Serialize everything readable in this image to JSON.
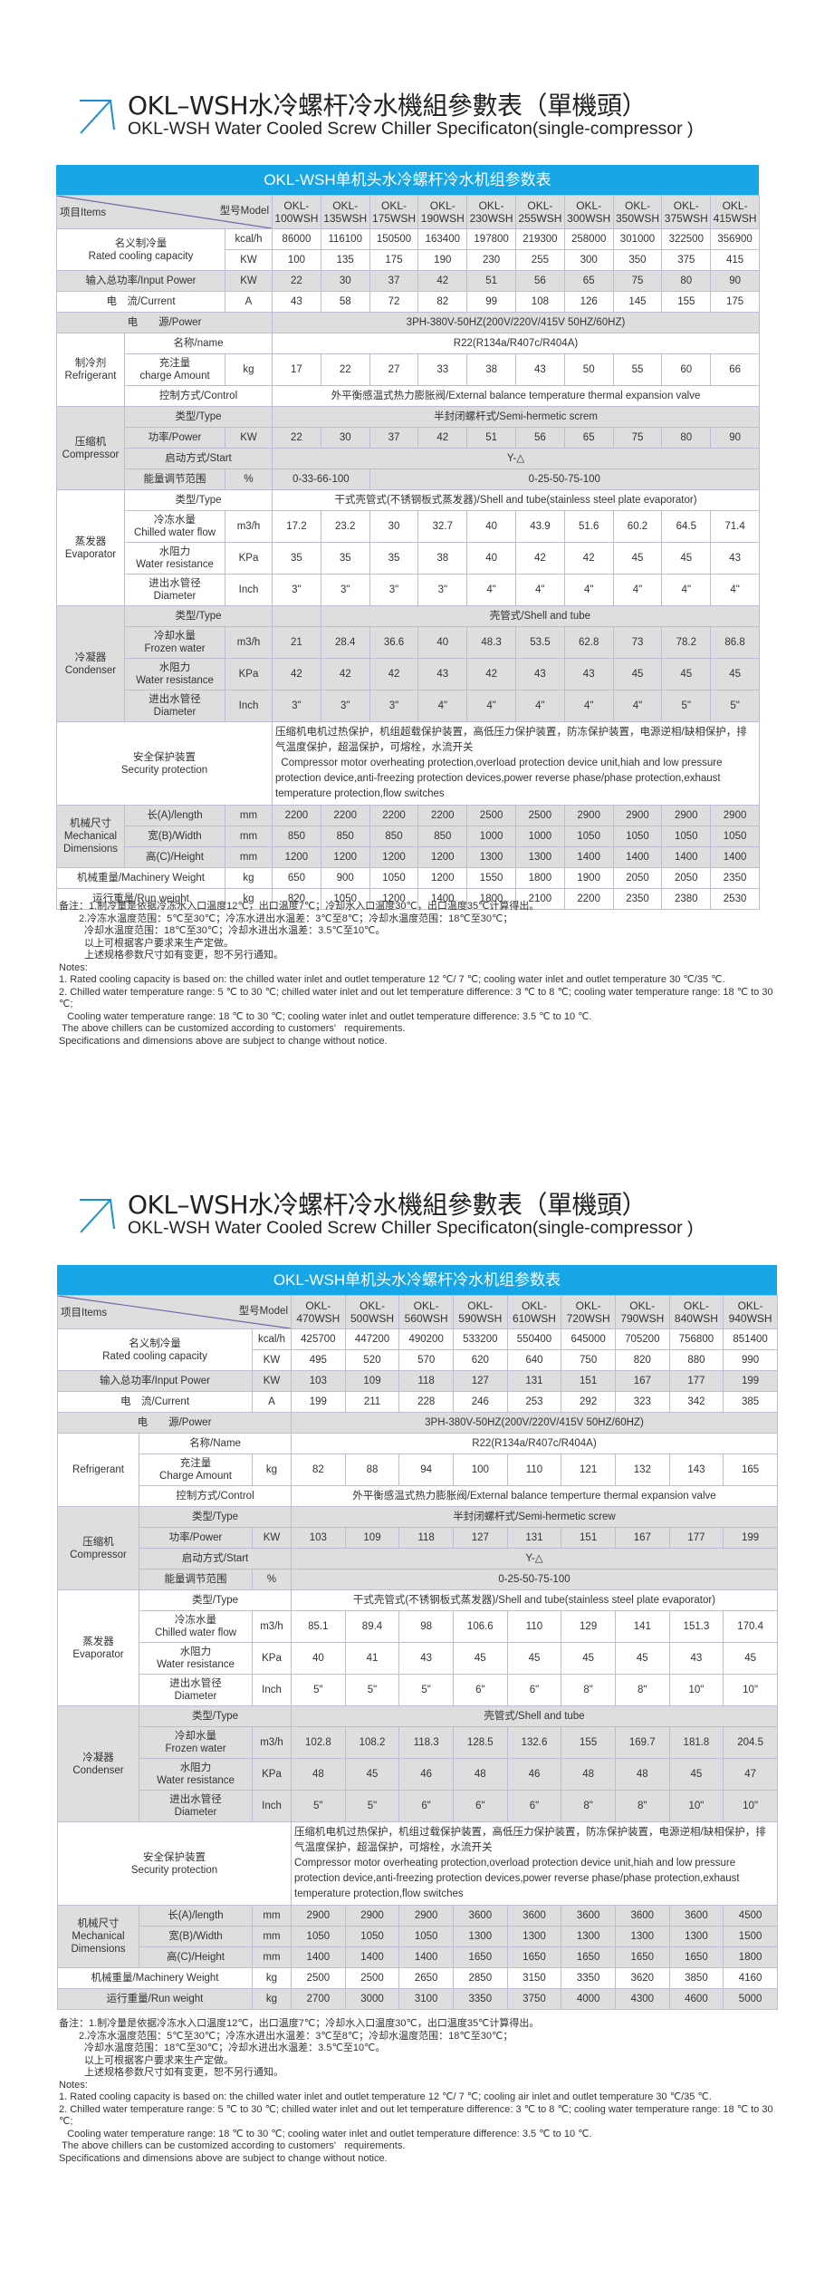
{
  "colors": {
    "banner": "#17a6e6",
    "arrow": "#1a8fd8",
    "shade": "#dedede"
  },
  "tables": [
    {
      "title_zh": "OKL–WSH水冷螺杆冷水機組參數表（單機頭）",
      "title_en": "OKL-WSH Water Cooled Screw Chiller Specificaton(single-compressor )",
      "banner": "OKL-WSH单机头水冷螺杆冷水机组参数表",
      "header": {
        "items": "项目Items",
        "model": "型号Model"
      },
      "models": [
        "OKL-100WSH",
        "OKL-135WSH",
        "OKL-175WSH",
        "OKL-190WSH",
        "OKL-230WSH",
        "OKL-255WSH",
        "OKL-300WSH",
        "OKL-350WSH",
        "OKL-375WSH",
        "OKL-415WSH"
      ],
      "sections": [
        {
          "type": "merged",
          "label": "名义制冷量\nRated cooling capacity",
          "rows": [
            {
              "unit": "kcal/h",
              "values": [
                "86000",
                "116100",
                "150500",
                "163400",
                "197800",
                "219300",
                "258000",
                "301000",
                "322500",
                "356900"
              ]
            },
            {
              "unit": "KW",
              "values": [
                "100",
                "135",
                "175",
                "190",
                "230",
                "255",
                "300",
                "350",
                "375",
                "415"
              ]
            }
          ]
        },
        {
          "type": "single",
          "label": "输入总功率/Input Power",
          "unit": "KW",
          "values": [
            "22",
            "30",
            "37",
            "42",
            "51",
            "56",
            "65",
            "75",
            "80",
            "90"
          ]
        },
        {
          "type": "single",
          "label": "电　流/Current",
          "unit": "A",
          "values": [
            "43",
            "58",
            "72",
            "82",
            "99",
            "108",
            "126",
            "145",
            "155",
            "175"
          ]
        },
        {
          "type": "span",
          "label": "电　　源/Power",
          "value": "3PH-380V-50HZ(200V/220V/415V   50HZ/60HZ)"
        },
        {
          "type": "group",
          "label": "制冷剂\nRefrigerant",
          "rows": [
            {
              "label": "名称/name",
              "value": "R22(R134a/R407c/R404A)"
            },
            {
              "label": "充注量\ncharge Amount",
              "unit": "kg",
              "values": [
                "17",
                "22",
                "27",
                "33",
                "38",
                "43",
                "50",
                "55",
                "60",
                "66"
              ]
            },
            {
              "label": "控制方式/Control",
              "value": "外平衡感温式热力膨胀阀/External balance temperature thermal expansion valve"
            }
          ]
        },
        {
          "type": "group",
          "label": "压缩机\nCompressor",
          "rows": [
            {
              "label": "类型/Type",
              "value": "半封闭螺杆式/Semi-hermetic screm"
            },
            {
              "label": "功率/Power",
              "unit": "KW",
              "values": [
                "22",
                "30",
                "37",
                "42",
                "51",
                "56",
                "65",
                "75",
                "80",
                "90"
              ]
            },
            {
              "label": "启动方式/Start",
              "value": "Y-△"
            },
            {
              "label": "能量调节范围",
              "unit": "%",
              "split": [
                "0-33-66-100",
                "0-25-50-75-100"
              ]
            }
          ]
        },
        {
          "type": "group",
          "label": "蒸发器\nEvaporator",
          "rows": [
            {
              "label": "类型/Type",
              "value": "干式壳管式(不锈钢板式蒸发器)/Shell and tube(stainless steel plate evaporator)"
            },
            {
              "label": "冷冻水量\nChilled water flow",
              "unit": "m3/h",
              "values": [
                "17.2",
                "23.2",
                "30",
                "32.7",
                "40",
                "43.9",
                "51.6",
                "60.2",
                "64.5",
                "71.4"
              ]
            },
            {
              "label": "水阻力\nWater resistance",
              "unit": "KPa",
              "values": [
                "35",
                "35",
                "35",
                "38",
                "40",
                "42",
                "42",
                "45",
                "45",
                "43"
              ]
            },
            {
              "label": "进出水管径\nDiameter",
              "unit": "Inch",
              "values": [
                "3\"",
                "3\"",
                "3\"",
                "3\"",
                "4\"",
                "4\"",
                "4\"",
                "4\"",
                "4\"",
                "4\""
              ]
            }
          ]
        },
        {
          "type": "group",
          "label": "冷凝器\nCondenser",
          "rows": [
            {
              "label": "类型/Type",
              "split": [
                "",
                "壳管式/Shell and tube"
              ]
            },
            {
              "label": "冷却水量\nFrozen water",
              "unit": "m3/h",
              "values": [
                "21",
                "28.4",
                "36.6",
                "40",
                "48.3",
                "53.5",
                "62.8",
                "73",
                "78.2",
                "86.8"
              ]
            },
            {
              "label": "水阻力\nWater resistance",
              "unit": "KPa",
              "values": [
                "42",
                "42",
                "42",
                "43",
                "42",
                "43",
                "43",
                "45",
                "45",
                "45"
              ]
            },
            {
              "label": "进出水管径\nDiameter",
              "unit": "Inch",
              "values": [
                "3\"",
                "3\"",
                "3\"",
                "4\"",
                "4\"",
                "4\"",
                "4\"",
                "4\"",
                "5\"",
                "5\""
              ]
            }
          ]
        },
        {
          "type": "security",
          "label": "安全保护装置\nSecurity protection",
          "value_zh": "压缩机电机过热保护，机组超载保护装置，高低压力保护装置，防冻保护装置，电源逆相/缺相保护，排气温度保护，超温保护，可熔栓，水流开关",
          "value_en": "  Compressor motor overheating protection,overload protection device unit,hiah and low pressure protection device,anti-freezing protection devices,power reverse phase/phase protection,exhaust temperature protection,flow switches"
        },
        {
          "type": "group",
          "label": "机械尺寸\nMechanical\nDimensions",
          "rows": [
            {
              "label": "长(A)/length",
              "unit": "mm",
              "values": [
                "2200",
                "2200",
                "2200",
                "2200",
                "2500",
                "2500",
                "2900",
                "2900",
                "2900",
                "2900"
              ]
            },
            {
              "label": "宽(B)/Width",
              "unit": "mm",
              "values": [
                "850",
                "850",
                "850",
                "850",
                "1000",
                "1000",
                "1050",
                "1050",
                "1050",
                "1050"
              ]
            },
            {
              "label": "高(C)/Height",
              "unit": "mm",
              "values": [
                "1200",
                "1200",
                "1200",
                "1200",
                "1300",
                "1300",
                "1400",
                "1400",
                "1400",
                "1400"
              ]
            }
          ]
        },
        {
          "type": "single",
          "label": "机械重量/Machinery Weight",
          "unit": "kg",
          "values": [
            "650",
            "900",
            "1050",
            "1200",
            "1550",
            "1800",
            "1900",
            "2050",
            "2050",
            "2350"
          ]
        },
        {
          "type": "single",
          "label": "运行重量/Run weight",
          "unit": "kg",
          "values": [
            "820",
            "1050",
            "1200",
            "1400",
            "1800",
            "2100",
            "2200",
            "2350",
            "2380",
            "2530"
          ]
        }
      ],
      "notes_zh": [
        "备注：1.制冷量是依据冷冻水入口温度12℃，出口温度7℃；冷却水入口温度30℃，出口温度35℃计算得出。",
        "2.冷冻水温度范围：5℃至30℃；冷冻水进出水温差：3℃至8℃；冷却水温度范围：18℃至30℃；",
        "冷却水温度范围：18℃至30℃；冷却水进出水温差：3.5℃至10℃。",
        "以上可根据客户要求来生产定做。",
        "上述规格参数尺寸如有变更，恕不另行通知。"
      ],
      "notes_en": [
        "Notes:",
        "1. Rated cooling capacity is based on: the chilled water inlet and outlet temperature 12 ℃/ 7 ℃; cooling water inlet and outlet temperature 30 ℃/35 ℃.",
        "2. Chilled water temperature range: 5 ℃ to 30 ℃; chilled water inlet and out let temperature difference: 3 ℃ to 8 ℃; cooling water temperature range: 18 ℃ to 30 ℃;",
        "   Cooling water temperature range: 18 ℃ to 30 ℃; cooling water inlet and outlet temperature difference: 3.5 ℃ to 10 ℃.",
        " The above chillers can be customized according to customers'   requirements.",
        "Specifications and dimensions above are subject to change without notice."
      ]
    },
    {
      "title_zh": "OKL–WSH水冷螺杆冷水機組參數表（單機頭）",
      "title_en": "OKL-WSH Water Cooled Screw Chiller Specificaton(single-compressor )",
      "banner": "OKL-WSH单机头水冷螺杆冷水机组参数表",
      "header": {
        "items": "项目Items",
        "model": "型号Model"
      },
      "models": [
        "OKL-470WSH",
        "OKL-500WSH",
        "OKL-560WSH",
        "OKL-590WSH",
        "OKL-610WSH",
        "OKL-720WSH",
        "OKL-790WSH",
        "OKL-840WSH",
        "OKL-940WSH"
      ],
      "sections": [
        {
          "type": "merged",
          "label": "名义制冷量\nRated cooling capacity",
          "rows": [
            {
              "unit": "kcal/h",
              "values": [
                "425700",
                "447200",
                "490200",
                "533200",
                "550400",
                "645000",
                "705200",
                "756800",
                "851400"
              ]
            },
            {
              "unit": "KW",
              "values": [
                "495",
                "520",
                "570",
                "620",
                "640",
                "750",
                "820",
                "880",
                "990"
              ]
            }
          ]
        },
        {
          "type": "single",
          "label": "输入总功率/Input Power",
          "unit": "KW",
          "values": [
            "103",
            "109",
            "118",
            "127",
            "131",
            "151",
            "167",
            "177",
            "199"
          ]
        },
        {
          "type": "single",
          "label": "电　流/Current",
          "unit": "A",
          "values": [
            "199",
            "211",
            "228",
            "246",
            "253",
            "292",
            "323",
            "342",
            "385"
          ]
        },
        {
          "type": "span",
          "label": "电　　源/Power",
          "value": "3PH-380V-50HZ(200V/220V/415V   50HZ/60HZ)"
        },
        {
          "type": "group",
          "label": "Refrigerant",
          "rows": [
            {
              "label": "名称/Name",
              "value": "R22(R134a/R407c/R404A)"
            },
            {
              "label": "充注量\nCharge Amount",
              "unit": "kg",
              "values": [
                "82",
                "88",
                "94",
                "100",
                "110",
                "121",
                "132",
                "143",
                "165"
              ]
            },
            {
              "label": "控制方式/Control",
              "value": "外平衡感温式热力膨胀阀/External balance temperture thermal expansion valve"
            }
          ]
        },
        {
          "type": "group",
          "label": "压缩机\nCompressor",
          "rows": [
            {
              "label": "类型/Type",
              "value": "半封闭螺杆式/Semi-hermetic screw"
            },
            {
              "label": "功率/Power",
              "unit": "KW",
              "values": [
                "103",
                "109",
                "118",
                "127",
                "131",
                "151",
                "167",
                "177",
                "199"
              ]
            },
            {
              "label": "启动方式/Start",
              "value": "Y-△"
            },
            {
              "label": "能量调节范围",
              "unit": "%",
              "value": "0-25-50-75-100"
            }
          ]
        },
        {
          "type": "group",
          "label": "蒸发器\nEvaporator",
          "rows": [
            {
              "label": "类型/Type",
              "value": "干式壳管式(不锈钢板式蒸发器)/Shell and tube(stainless steel plate evaporator)"
            },
            {
              "label": "冷冻水量\nChilled water flow",
              "unit": "m3/h",
              "values": [
                "85.1",
                "89.4",
                "98",
                "106.6",
                "110",
                "129",
                "141",
                "151.3",
                "170.4"
              ]
            },
            {
              "label": "水阻力\nWater resistance",
              "unit": "KPa",
              "values": [
                "40",
                "41",
                "43",
                "45",
                "45",
                "45",
                "45",
                "43",
                "45"
              ]
            },
            {
              "label": "进出水管径\nDiameter",
              "unit": "Inch",
              "values": [
                "5\"",
                "5\"",
                "5\"",
                "6\"",
                "6\"",
                "8\"",
                "8\"",
                "10\"",
                "10\""
              ]
            }
          ]
        },
        {
          "type": "group",
          "label": "冷凝器\nCondenser",
          "rows": [
            {
              "label": "类型/Type",
              "value": "壳管式/Shell and tube"
            },
            {
              "label": "冷却水量\nFrozen water",
              "unit": "m3/h",
              "values": [
                "102.8",
                "108.2",
                "118.3",
                "128.5",
                "132.6",
                "155",
                "169.7",
                "181.8",
                "204.5"
              ]
            },
            {
              "label": "水阻力\nWater resistance",
              "unit": "KPa",
              "values": [
                "48",
                "45",
                "46",
                "48",
                "46",
                "48",
                "48",
                "45",
                "47"
              ]
            },
            {
              "label": "进出水管径\nDiameter",
              "unit": "Inch",
              "values": [
                "5\"",
                "5\"",
                "6\"",
                "6\"",
                "6\"",
                "8\"",
                "8\"",
                "10\"",
                "10\""
              ]
            }
          ]
        },
        {
          "type": "security",
          "label": "安全保护装置\nSecurity protection",
          "value_zh": "压缩机电机过热保护，机组过载保护装置，高低压力保护装置，防冻保护装置，电源逆相/缺相保护，排气温度保护，超温保护，可熔栓，水流开关",
          "value_en": "Compressor motor overheating protection,overload protection device unit,hiah and low pressure protection device,anti-freezing protection devices,power reverse phase/phase protection,exhaust temperature protection,flow switches"
        },
        {
          "type": "group",
          "label": "机械尺寸\nMechanical\nDimensions",
          "rows": [
            {
              "label": "长(A)/length",
              "unit": "mm",
              "values": [
                "2900",
                "2900",
                "2900",
                "3600",
                "3600",
                "3600",
                "3600",
                "3600",
                "4500"
              ]
            },
            {
              "label": "宽(B)/Width",
              "unit": "mm",
              "values": [
                "1050",
                "1050",
                "1050",
                "1300",
                "1300",
                "1300",
                "1300",
                "1300",
                "1500"
              ]
            },
            {
              "label": "高(C)/Height",
              "unit": "mm",
              "values": [
                "1400",
                "1400",
                "1400",
                "1650",
                "1650",
                "1650",
                "1650",
                "1650",
                "1800"
              ]
            }
          ]
        },
        {
          "type": "single",
          "label": "机械重量/Machinery Weight",
          "unit": "kg",
          "values": [
            "2500",
            "2500",
            "2650",
            "2850",
            "3150",
            "3350",
            "3620",
            "3850",
            "4160"
          ]
        },
        {
          "type": "single",
          "label": "运行重量/Run weight",
          "unit": "kg",
          "values": [
            "2700",
            "3000",
            "3100",
            "3350",
            "3750",
            "4000",
            "4300",
            "4600",
            "5000"
          ]
        }
      ],
      "notes_zh": [
        "备注：1.制冷量是依据冷冻水入口温度12℃，出口温度7℃；冷却水入口温度30℃，出口温度35℃计算得出。",
        "2.冷冻水温度范围：5℃至30℃；冷冻水进出水温差：3℃至8℃；冷却水温度范围：18℃至30℃；",
        "冷却水温度范围：18℃至30℃；冷却水进出水温差：3.5℃至10℃。",
        "以上可根据客户要求来生产定做。",
        "上述规格参数尺寸如有变更，恕不另行通知。"
      ],
      "notes_en": [
        "Notes:",
        "1. Rated cooling capacity is based on: the chilled water inlet and outlet temperature 12 ℃/ 7 ℃; cooling air inlet and outlet temperature 30 ℃/35 ℃.",
        "2. Chilled water temperature range: 5 ℃ to 30 ℃; chilled water inlet and out let temperature difference: 3 ℃ to 8 ℃; cooling water temperature range: 18 ℃ to 30 ℃;",
        "   Cooling water temperature range: 18 ℃ to 30 ℃; cooling water inlet and outlet temperature difference: 3.5 ℃ to 10 ℃.",
        " The above chillers can be customized according to customers'   requirements.",
        "Specifications and dimensions above are subject to change without notice."
      ]
    }
  ]
}
